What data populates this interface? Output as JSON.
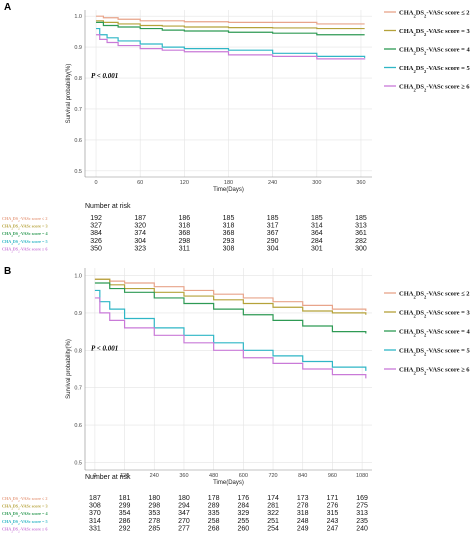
{
  "figure": {
    "colors": {
      "s2": "#e8a48a",
      "s3": "#b5a23a",
      "s4": "#2e9a54",
      "s5": "#2fb6c6",
      "s6": "#c97ad8"
    }
  },
  "chart_data": [
    {
      "panel": "A",
      "type": "line",
      "ylabel": "Survival probability(%)",
      "xlabel": "Time(Days)",
      "xlim": [
        -15,
        375
      ],
      "ylim": [
        0.48,
        1.02
      ],
      "xticks": [
        0,
        60,
        120,
        180,
        240,
        300,
        360
      ],
      "yticks": [
        0.5,
        0.6,
        0.7,
        0.8,
        0.9,
        1.0
      ],
      "grid": true,
      "annotation": "P < 0.001",
      "legend_position": "right",
      "series": [
        {
          "key": "s2",
          "name": "CHA2DS2-VASc score ≤ 2",
          "color": "#e8a48a",
          "x": [
            0,
            10,
            30,
            60,
            90,
            120,
            180,
            240,
            300,
            365
          ],
          "y": [
            1.0,
            0.995,
            0.99,
            0.985,
            0.985,
            0.982,
            0.98,
            0.98,
            0.975,
            0.975
          ]
        },
        {
          "key": "s3",
          "name": "CHA2DS2-VASc score = 3",
          "color": "#b5a23a",
          "x": [
            0,
            10,
            30,
            60,
            90,
            120,
            180,
            240,
            300,
            365
          ],
          "y": [
            0.985,
            0.98,
            0.975,
            0.97,
            0.968,
            0.965,
            0.963,
            0.962,
            0.96,
            0.96
          ]
        },
        {
          "key": "s4",
          "name": "CHA2DS2-VASc score = 4",
          "color": "#2e9a54",
          "x": [
            0,
            10,
            30,
            60,
            90,
            120,
            180,
            240,
            300,
            365
          ],
          "y": [
            0.98,
            0.97,
            0.965,
            0.96,
            0.955,
            0.952,
            0.948,
            0.945,
            0.94,
            0.94
          ]
        },
        {
          "key": "s5",
          "name": "CHA2DS2-VASc score = 5",
          "color": "#2fb6c6",
          "x": [
            0,
            5,
            15,
            30,
            60,
            90,
            120,
            180,
            240,
            300,
            365
          ],
          "y": [
            0.96,
            0.94,
            0.93,
            0.92,
            0.91,
            0.9,
            0.895,
            0.89,
            0.88,
            0.87,
            0.865
          ]
        },
        {
          "key": "s6",
          "name": "CHA2DS2-VASc score ≥ 6",
          "color": "#c97ad8",
          "x": [
            0,
            5,
            15,
            30,
            60,
            90,
            120,
            180,
            240,
            300,
            365
          ],
          "y": [
            0.94,
            0.925,
            0.915,
            0.905,
            0.895,
            0.89,
            0.885,
            0.875,
            0.87,
            0.862,
            0.86
          ]
        }
      ],
      "risk_table": {
        "title": "Number at risk",
        "rows": [
          {
            "key": "s2",
            "label": "CHA2DS2-VASc score ≤ 2",
            "values": [
              192,
              187,
              186,
              185,
              185,
              185,
              185
            ]
          },
          {
            "key": "s3",
            "label": "CHA2DS2-VASc score = 3",
            "values": [
              327,
              320,
              318,
              318,
              317,
              314,
              313
            ]
          },
          {
            "key": "s4",
            "label": "CHA2DS2-VASc score = 4",
            "values": [
              384,
              374,
              368,
              368,
              367,
              364,
              361
            ]
          },
          {
            "key": "s5",
            "label": "CHA2DS2-VASc score = 5",
            "values": [
              326,
              304,
              298,
              293,
              290,
              284,
              282
            ]
          },
          {
            "key": "s6",
            "label": "CHA2DS2-VASc score ≥ 6",
            "values": [
              350,
              323,
              311,
              308,
              304,
              301,
              300
            ]
          }
        ]
      }
    },
    {
      "panel": "B",
      "type": "line",
      "ylabel": "Survival probability(%)",
      "xlabel": "Time(Days)",
      "xlim": [
        -40,
        1120
      ],
      "ylim": [
        0.48,
        1.02
      ],
      "xticks": [
        0,
        120,
        240,
        360,
        480,
        600,
        720,
        840,
        960,
        1080
      ],
      "yticks": [
        0.5,
        0.6,
        0.7,
        0.8,
        0.9,
        1.0
      ],
      "grid": true,
      "annotation": "P < 0.001",
      "legend_position": "right",
      "series": [
        {
          "key": "s2",
          "name": "CHA2DS2-VASc score ≤ 2",
          "color": "#e8a48a",
          "x": [
            0,
            60,
            120,
            240,
            360,
            480,
            600,
            720,
            840,
            960,
            1095
          ],
          "y": [
            0.99,
            0.985,
            0.98,
            0.97,
            0.96,
            0.95,
            0.94,
            0.93,
            0.92,
            0.91,
            0.905
          ]
        },
        {
          "key": "s3",
          "name": "CHA2DS2-VASc score = 3",
          "color": "#b5a23a",
          "x": [
            0,
            60,
            120,
            240,
            360,
            480,
            600,
            720,
            840,
            960,
            1095
          ],
          "y": [
            0.99,
            0.975,
            0.965,
            0.955,
            0.945,
            0.935,
            0.925,
            0.915,
            0.905,
            0.9,
            0.895
          ]
        },
        {
          "key": "s4",
          "name": "CHA2DS2-VASc score = 4",
          "color": "#2e9a54",
          "x": [
            0,
            60,
            120,
            240,
            360,
            480,
            600,
            720,
            840,
            960,
            1095
          ],
          "y": [
            0.98,
            0.965,
            0.955,
            0.94,
            0.925,
            0.91,
            0.895,
            0.88,
            0.865,
            0.85,
            0.845
          ]
        },
        {
          "key": "s5",
          "name": "CHA2DS2-VASc score = 5",
          "color": "#2fb6c6",
          "x": [
            0,
            20,
            60,
            120,
            240,
            360,
            480,
            600,
            720,
            840,
            960,
            1095
          ],
          "y": [
            0.96,
            0.93,
            0.91,
            0.885,
            0.86,
            0.84,
            0.82,
            0.8,
            0.785,
            0.77,
            0.755,
            0.745
          ]
        },
        {
          "key": "s6",
          "name": "CHA2DS2-VASc score ≥ 6",
          "color": "#c97ad8",
          "x": [
            0,
            20,
            60,
            120,
            240,
            360,
            480,
            600,
            720,
            840,
            960,
            1095
          ],
          "y": [
            0.94,
            0.9,
            0.88,
            0.86,
            0.84,
            0.82,
            0.8,
            0.78,
            0.765,
            0.75,
            0.735,
            0.725
          ]
        }
      ],
      "risk_table": {
        "title": "Number at risk",
        "rows": [
          {
            "key": "s2",
            "label": "CHA2DS2-VASc score ≤ 2",
            "values": [
              187,
              181,
              180,
              180,
              178,
              176,
              174,
              173,
              171,
              169
            ]
          },
          {
            "key": "s3",
            "label": "CHA2DS2-VASc score = 3",
            "values": [
              308,
              299,
              298,
              294,
              289,
              284,
              281,
              278,
              276,
              275
            ]
          },
          {
            "key": "s4",
            "label": "CHA2DS2-VASc score = 4",
            "values": [
              370,
              354,
              353,
              347,
              335,
              329,
              322,
              318,
              315,
              313
            ]
          },
          {
            "key": "s5",
            "label": "CHA2DS2-VASc score = 5",
            "values": [
              314,
              286,
              278,
              270,
              258,
              255,
              251,
              248,
              243,
              235
            ]
          },
          {
            "key": "s6",
            "label": "CHA2DS2-VASc score ≥ 6",
            "values": [
              331,
              292,
              285,
              277,
              268,
              260,
              254,
              249,
              247,
              240
            ]
          }
        ]
      }
    }
  ]
}
